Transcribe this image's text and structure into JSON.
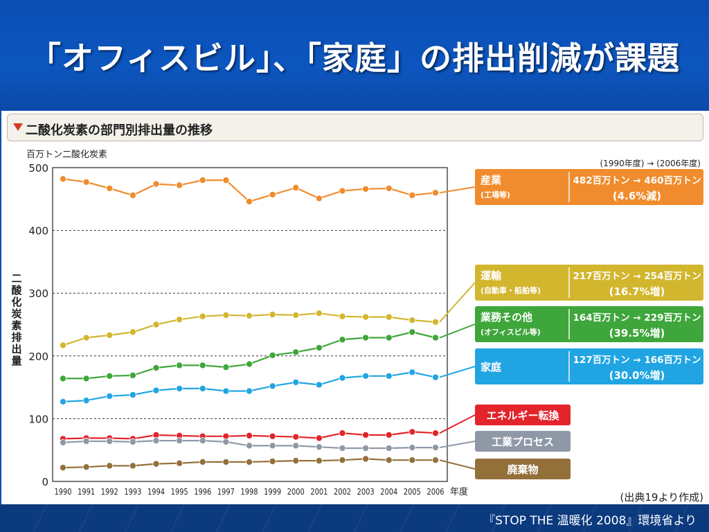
{
  "slide": {
    "title": "「オフィスビル」、「家庭」の排出削減が課題",
    "source_footer": "『STOP THE 温暖化 2008』環境省より"
  },
  "chart_data": {
    "type": "line",
    "title": "二酸化炭素の部門別排出量の推移",
    "ylabel": "二酸化炭素排出量",
    "yunit": "百万トン二酸化炭素",
    "xlabel": "年度",
    "ylim": [
      0,
      500
    ],
    "yticks": [
      0,
      100,
      200,
      300,
      400,
      500
    ],
    "grid": true,
    "legend_position": "right",
    "compare_header": "(1990年度) → (2006年度)",
    "source_note": "(出典19より作成)",
    "x": [
      "1990",
      "1991",
      "1992",
      "1993",
      "1994",
      "1995",
      "1996",
      "1997",
      "1998",
      "1999",
      "2000",
      "2001",
      "2002",
      "2003",
      "2004",
      "2005",
      "2006"
    ],
    "series": [
      {
        "name": "産業",
        "sub": "(工場等)",
        "color": "#f08c2d",
        "change_text": "482百万トン → 460百万トン",
        "change_pct": "(4.6%減)",
        "values": [
          482,
          477,
          467,
          456,
          474,
          472,
          480,
          480,
          446,
          457,
          468,
          451,
          463,
          466,
          467,
          456,
          460
        ]
      },
      {
        "name": "運輸",
        "sub": "(自動車・船舶等)",
        "color": "#d2b62e",
        "change_text": "217百万トン → 254百万トン",
        "change_pct": "(16.7%増)",
        "values": [
          217,
          229,
          233,
          238,
          250,
          258,
          263,
          265,
          264,
          266,
          265,
          268,
          263,
          262,
          262,
          257,
          254
        ]
      },
      {
        "name": "業務その他",
        "sub": "(オフィスビル等)",
        "color": "#3fa63b",
        "change_text": "164百万トン → 229百万トン",
        "change_pct": "(39.5%増)",
        "values": [
          164,
          164,
          168,
          169,
          181,
          185,
          185,
          182,
          187,
          201,
          206,
          213,
          226,
          229,
          229,
          238,
          229
        ]
      },
      {
        "name": "家庭",
        "sub": "",
        "color": "#21a5e2",
        "change_text": "127百万トン → 166百万トン",
        "change_pct": "(30.0%増)",
        "values": [
          127,
          129,
          136,
          138,
          145,
          148,
          148,
          144,
          144,
          152,
          158,
          154,
          165,
          168,
          168,
          174,
          166
        ]
      },
      {
        "name": "エネルギー転換",
        "sub": "",
        "color": "#e3242b",
        "change_text": "",
        "change_pct": "",
        "values": [
          68,
          69,
          69,
          68,
          74,
          73,
          72,
          72,
          73,
          72,
          71,
          69,
          77,
          74,
          74,
          79,
          77
        ]
      },
      {
        "name": "工業プロセス",
        "sub": "",
        "color": "#8f98a6",
        "change_text": "",
        "change_pct": "",
        "values": [
          62,
          64,
          64,
          63,
          65,
          65,
          65,
          63,
          57,
          57,
          57,
          55,
          53,
          53,
          53,
          54,
          54
        ]
      },
      {
        "name": "廃棄物",
        "sub": "",
        "color": "#93703a",
        "change_text": "",
        "change_pct": "",
        "values": [
          22,
          23,
          25,
          25,
          28,
          29,
          31,
          31,
          31,
          32,
          33,
          33,
          34,
          36,
          34,
          34,
          34
        ]
      }
    ]
  }
}
